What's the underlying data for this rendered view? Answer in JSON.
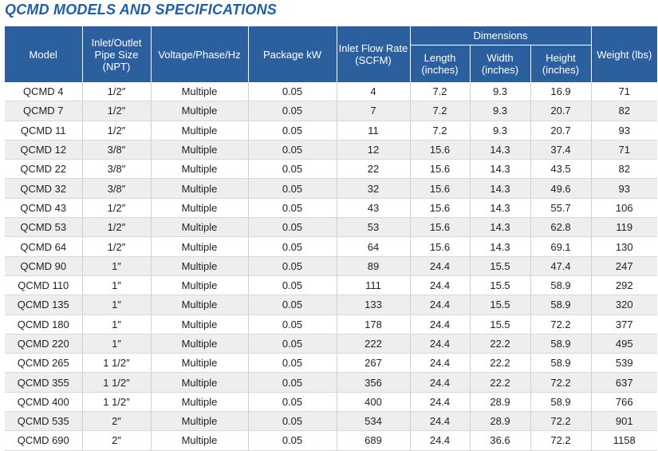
{
  "title": "QCMD MODELS AND SPECIFICATIONS",
  "headers": {
    "model": "Model",
    "pipe_size": "Inlet/Outlet Pipe Size (NPT)",
    "voltage": "Voltage/Phase/Hz",
    "package_kw": "Package kW",
    "inlet_flow": "Inlet Flow Rate (SCFM)",
    "dimensions": "Dimensions",
    "length": "Length (inches)",
    "width": "Width (inches)",
    "height": "Height (inches)",
    "weight": "Weight (lbs)"
  },
  "rows": [
    {
      "model": "QCMD 4",
      "pipe": "1/2″",
      "voltage": "Multiple",
      "kw": "0.05",
      "flow": "4",
      "length": "7.2",
      "width": "9.3",
      "height": "16.9",
      "weight": "71"
    },
    {
      "model": "QCMD 7",
      "pipe": "1/2″",
      "voltage": "Multiple",
      "kw": "0.05",
      "flow": "7",
      "length": "7.2",
      "width": "9.3",
      "height": "20.7",
      "weight": "82"
    },
    {
      "model": "QCMD 11",
      "pipe": "1/2″",
      "voltage": "Multiple",
      "kw": "0.05",
      "flow": "11",
      "length": "7.2",
      "width": "9.3",
      "height": "20.7",
      "weight": "93"
    },
    {
      "model": "QCMD 12",
      "pipe": "3/8″",
      "voltage": "Multiple",
      "kw": "0.05",
      "flow": "12",
      "length": "15.6",
      "width": "14.3",
      "height": "37.4",
      "weight": "71"
    },
    {
      "model": "QCMD 22",
      "pipe": "3/8″",
      "voltage": "Multiple",
      "kw": "0.05",
      "flow": "22",
      "length": "15.6",
      "width": "14.3",
      "height": "43.5",
      "weight": "82"
    },
    {
      "model": "QCMD 32",
      "pipe": "3/8″",
      "voltage": "Multiple",
      "kw": "0.05",
      "flow": "32",
      "length": "15.6",
      "width": "14.3",
      "height": "49.6",
      "weight": "93"
    },
    {
      "model": "QCMD 43",
      "pipe": "1/2″",
      "voltage": "Multiple",
      "kw": "0.05",
      "flow": "43",
      "length": "15.6",
      "width": "14.3",
      "height": "55.7",
      "weight": "106"
    },
    {
      "model": "QCMD 53",
      "pipe": "1/2″",
      "voltage": "Multiple",
      "kw": "0.05",
      "flow": "53",
      "length": "15.6",
      "width": "14.3",
      "height": "62.8",
      "weight": "119"
    },
    {
      "model": "QCMD 64",
      "pipe": "1/2″",
      "voltage": "Multiple",
      "kw": "0.05",
      "flow": "64",
      "length": "15.6",
      "width": "14.3",
      "height": "69.1",
      "weight": "130"
    },
    {
      "model": "QCMD 90",
      "pipe": "1″",
      "voltage": "Multiple",
      "kw": "0.05",
      "flow": "89",
      "length": "24.4",
      "width": "15.5",
      "height": "47.4",
      "weight": "247"
    },
    {
      "model": "QCMD 110",
      "pipe": "1″",
      "voltage": "Multiple",
      "kw": "0.05",
      "flow": "111",
      "length": "24.4",
      "width": "15.5",
      "height": "58.9",
      "weight": "292"
    },
    {
      "model": "QCMD 135",
      "pipe": "1″",
      "voltage": "Multiple",
      "kw": "0.05",
      "flow": "133",
      "length": "24.4",
      "width": "15.5",
      "height": "58.9",
      "weight": "320"
    },
    {
      "model": "QCMD 180",
      "pipe": "1″",
      "voltage": "Multiple",
      "kw": "0.05",
      "flow": "178",
      "length": "24.4",
      "width": "15.5",
      "height": "72.2",
      "weight": "377"
    },
    {
      "model": "QCMD 220",
      "pipe": "1″",
      "voltage": "Multiple",
      "kw": "0.05",
      "flow": "222",
      "length": "24.4",
      "width": "22.2",
      "height": "58.9",
      "weight": "495"
    },
    {
      "model": "QCMD 265",
      "pipe": "1 1/2″",
      "voltage": "Multiple",
      "kw": "0.05",
      "flow": "267",
      "length": "24.4",
      "width": "22.2",
      "height": "58.9",
      "weight": "539"
    },
    {
      "model": "QCMD 355",
      "pipe": "1 1/2″",
      "voltage": "Multiple",
      "kw": "0.05",
      "flow": "356",
      "length": "24.4",
      "width": "22.2",
      "height": "72.2",
      "weight": "637"
    },
    {
      "model": "QCMD 400",
      "pipe": "1 1/2″",
      "voltage": "Multiple",
      "kw": "0.05",
      "flow": "400",
      "length": "24.4",
      "width": "28.9",
      "height": "58.9",
      "weight": "766"
    },
    {
      "model": "QCMD 535",
      "pipe": "2″",
      "voltage": "Multiple",
      "kw": "0.05",
      "flow": "534",
      "length": "24.4",
      "width": "28.9",
      "height": "72.2",
      "weight": "901"
    },
    {
      "model": "QCMD 690",
      "pipe": "2″",
      "voltage": "Multiple",
      "kw": "0.05",
      "flow": "689",
      "length": "24.4",
      "width": "36.6",
      "height": "72.2",
      "weight": "1158"
    }
  ]
}
